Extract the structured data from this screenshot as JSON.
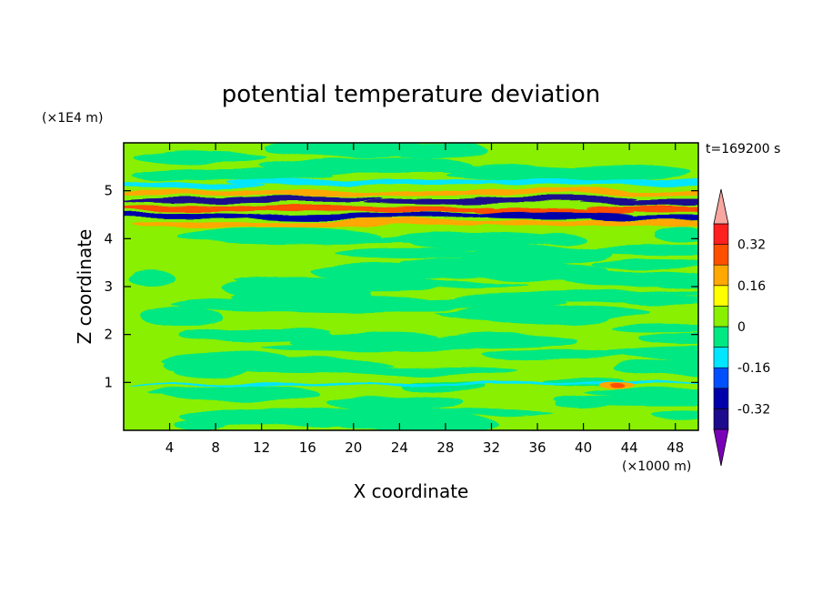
{
  "chart_data": {
    "type": "heatmap",
    "title": "potential temperature deviation",
    "xlabel": "X coordinate",
    "ylabel": "Z coordinate",
    "x_unit": "(×1000 m)",
    "y_unit": "(×1E4 m)",
    "time_label": "t=169200 s",
    "xlim": [
      0,
      50
    ],
    "ylim": [
      0,
      6
    ],
    "x_ticks": [
      4,
      8,
      12,
      16,
      20,
      24,
      28,
      32,
      36,
      40,
      44,
      48
    ],
    "y_ticks": [
      1,
      2,
      3,
      4,
      5
    ],
    "colorbar": {
      "levels": [
        -0.4,
        -0.32,
        -0.24,
        -0.16,
        -0.08,
        0,
        0.08,
        0.16,
        0.24,
        0.32,
        0.4
      ],
      "tick_labels": [
        "0.32",
        "0.16",
        "0",
        "-0.16",
        "-0.32"
      ],
      "tick_values": [
        0.32,
        0.16,
        0,
        -0.16,
        -0.32
      ],
      "colors": [
        "#1e0a8c",
        "#0000aa",
        "#0050ff",
        "#00e6ff",
        "#00e882",
        "#88f000",
        "#ffff00",
        "#ffa800",
        "#ff5000",
        "#ff2020"
      ],
      "over_color": "#f7a7a0",
      "under_color": "#7a00b8"
    },
    "bands": [
      {
        "z": 5.15,
        "value": -0.16,
        "note": "cyan band"
      },
      {
        "z": 5.0,
        "value": 0.2
      },
      {
        "z": 4.8,
        "value": -0.36
      },
      {
        "z": 4.6,
        "value": 0.28
      },
      {
        "z": 4.45,
        "value": -0.32
      },
      {
        "z": 4.3,
        "value": 0.22
      },
      {
        "z": 0.95,
        "value": -0.1
      }
    ],
    "background_value": 0.02
  }
}
